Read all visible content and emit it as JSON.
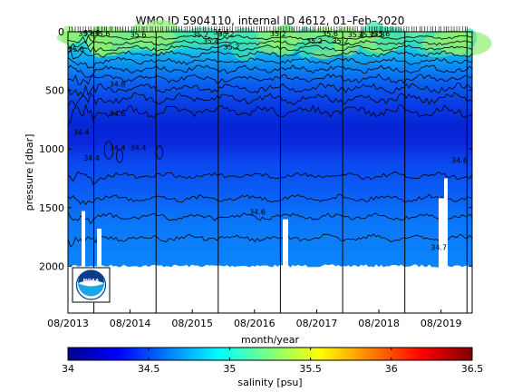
{
  "chart_data": {
    "type": "heatmap",
    "title": "WMO ID 5904110, internal ID 4612, 01–Feb–2020",
    "xlabel": "month/year",
    "ylabel": "pressure [dbar]",
    "x_ticks": [
      "08/2013",
      "08/2014",
      "08/2015",
      "08/2016",
      "08/2017",
      "08/2018",
      "08/2019"
    ],
    "x_range": [
      "2013-08",
      "2020-02"
    ],
    "y_ticks": [
      0,
      500,
      1000,
      1500,
      2000
    ],
    "ylim": [
      0,
      2400
    ],
    "y_reversed": true,
    "colorbar": {
      "label": "salinity [psu]",
      "ticks": [
        34,
        34.5,
        35,
        35.5,
        36,
        36.5
      ],
      "range": [
        34,
        36.5
      ],
      "colormap": "jet"
    },
    "year_separators": [
      "2014-01",
      "2015-01",
      "2016-01",
      "2017-01",
      "2018-01",
      "2019-01",
      "2020-01"
    ],
    "contour_labels": [
      {
        "text": "35.6",
        "x": "2013-08",
        "y": 170
      },
      {
        "text": "35.6",
        "x": "2013-10",
        "y": 40
      },
      {
        "text": "35.4",
        "x": "2013-11",
        "y": 30
      },
      {
        "text": "35.6",
        "x": "2014-01",
        "y": 40
      },
      {
        "text": "35.6",
        "x": "2014-08",
        "y": 45
      },
      {
        "text": "35.2",
        "x": "2015-08",
        "y": 45
      },
      {
        "text": "35.4",
        "x": "2015-10",
        "y": 100
      },
      {
        "text": "35.4",
        "x": "2015-12",
        "y": 25
      },
      {
        "text": "35.2",
        "x": "2016-01",
        "y": 40
      },
      {
        "text": "35.2",
        "x": "2016-02",
        "y": 150
      },
      {
        "text": "35.2",
        "x": "2016-11",
        "y": 40
      },
      {
        "text": "35.2",
        "x": "2017-06",
        "y": 100
      },
      {
        "text": "35.6",
        "x": "2017-09",
        "y": 40
      },
      {
        "text": "35.2",
        "x": "2017-11",
        "y": 100
      },
      {
        "text": "35.4",
        "x": "2018-02",
        "y": 45
      },
      {
        "text": "35.2",
        "x": "2018-04",
        "y": 45
      },
      {
        "text": "35.8",
        "x": "2018-06",
        "y": 45
      },
      {
        "text": "35.6",
        "x": "2018-07",
        "y": 40
      },
      {
        "text": "34.8",
        "x": "2014-04",
        "y": 470
      },
      {
        "text": "34.6",
        "x": "2014-04",
        "y": 720
      },
      {
        "text": "34.4",
        "x": "2013-09",
        "y": 880
      },
      {
        "text": "34.4",
        "x": "2014-04",
        "y": 1010
      },
      {
        "text": "34.4",
        "x": "2014-08",
        "y": 1010
      },
      {
        "text": "34.4",
        "x": "2013-11",
        "y": 1100
      },
      {
        "text": "34.6",
        "x": "2016-07",
        "y": 1560
      },
      {
        "text": "34.6",
        "x": "2019-10",
        "y": 1120
      },
      {
        "text": "34.7",
        "x": "2019-06",
        "y": 1860
      }
    ]
  }
}
